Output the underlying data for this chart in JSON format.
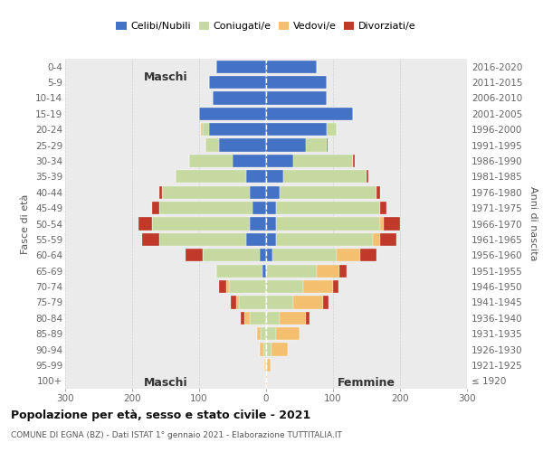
{
  "age_groups": [
    "0-4",
    "5-9",
    "10-14",
    "15-19",
    "20-24",
    "25-29",
    "30-34",
    "35-39",
    "40-44",
    "45-49",
    "50-54",
    "55-59",
    "60-64",
    "65-69",
    "70-74",
    "75-79",
    "80-84",
    "85-89",
    "90-94",
    "95-99",
    "100+"
  ],
  "birth_years": [
    "2016-2020",
    "2011-2015",
    "2006-2010",
    "2001-2005",
    "1996-2000",
    "1991-1995",
    "1986-1990",
    "1981-1985",
    "1976-1980",
    "1971-1975",
    "1966-1970",
    "1961-1965",
    "1956-1960",
    "1951-1955",
    "1946-1950",
    "1941-1945",
    "1936-1940",
    "1931-1935",
    "1926-1930",
    "1921-1925",
    "≤ 1920"
  ],
  "males": {
    "celibi": [
      75,
      85,
      80,
      100,
      85,
      70,
      50,
      30,
      25,
      20,
      25,
      30,
      10,
      5,
      0,
      0,
      0,
      0,
      0,
      0,
      0
    ],
    "coniugati": [
      0,
      0,
      0,
      0,
      10,
      20,
      65,
      105,
      130,
      140,
      145,
      130,
      85,
      70,
      55,
      40,
      25,
      8,
      4,
      2,
      0
    ],
    "vedovi": [
      0,
      0,
      0,
      0,
      2,
      0,
      0,
      0,
      0,
      0,
      0,
      0,
      0,
      0,
      5,
      5,
      8,
      5,
      5,
      1,
      0
    ],
    "divorziati": [
      0,
      0,
      0,
      0,
      0,
      0,
      0,
      0,
      5,
      10,
      20,
      25,
      25,
      0,
      10,
      8,
      5,
      0,
      0,
      0,
      0
    ]
  },
  "females": {
    "nubili": [
      75,
      90,
      90,
      130,
      90,
      60,
      40,
      25,
      20,
      15,
      15,
      15,
      10,
      0,
      0,
      0,
      0,
      0,
      0,
      0,
      0
    ],
    "coniugate": [
      0,
      0,
      0,
      0,
      15,
      30,
      90,
      125,
      145,
      155,
      155,
      145,
      95,
      75,
      55,
      40,
      20,
      15,
      8,
      2,
      0
    ],
    "vedove": [
      0,
      0,
      0,
      0,
      0,
      0,
      0,
      0,
      0,
      0,
      5,
      10,
      35,
      35,
      45,
      45,
      40,
      35,
      25,
      5,
      1
    ],
    "divorziate": [
      0,
      0,
      0,
      0,
      0,
      2,
      3,
      3,
      5,
      10,
      25,
      25,
      25,
      10,
      8,
      8,
      5,
      0,
      0,
      0,
      0
    ]
  },
  "colors": {
    "celibi_nubili": "#4472c4",
    "coniugati": "#c5d9a0",
    "vedovi": "#f4c06f",
    "divorziati": "#c0392b"
  },
  "xlim": 300,
  "title": "Popolazione per età, sesso e stato civile - 2021",
  "subtitle": "COMUNE DI EGNA (BZ) - Dati ISTAT 1° gennaio 2021 - Elaborazione TUTTITALIA.IT",
  "ylabel_left": "Fasce di età",
  "ylabel_right": "Anni di nascita",
  "xlabel_left": "Maschi",
  "xlabel_right": "Femmine",
  "bg_color": "#ebebeb"
}
